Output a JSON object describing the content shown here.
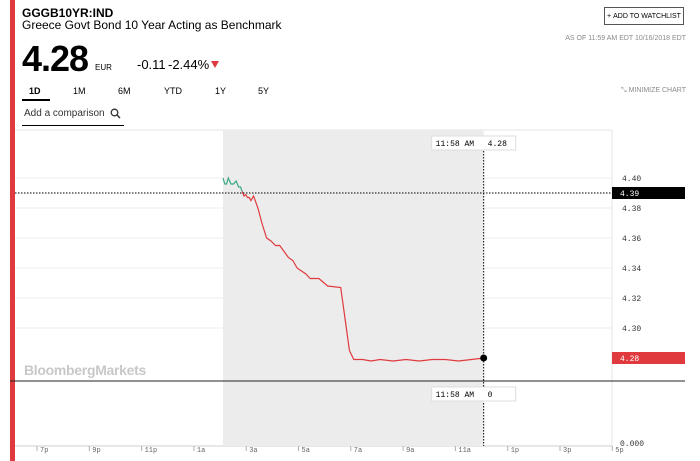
{
  "header": {
    "ticker": "GGGB10YR:IND",
    "name": "Greece Govt Bond 10 Year Acting as Benchmark",
    "watchlist_label": "ADD TO WATCHLIST",
    "as_of": "AS OF 11:59 AM EDT 10/16/2018 EDT"
  },
  "quote": {
    "price": "4.28",
    "currency": "EUR",
    "change": "-0.11",
    "percent_change": "-2.44%",
    "direction_icon": "down-triangle-icon"
  },
  "tabs": [
    {
      "label": "1D",
      "active": true
    },
    {
      "label": "1M",
      "active": false
    },
    {
      "label": "6M",
      "active": false
    },
    {
      "label": "YTD",
      "active": false
    },
    {
      "label": "1Y",
      "active": false
    },
    {
      "label": "5Y",
      "active": false
    }
  ],
  "minimize_label": "MINIMIZE CHART",
  "compare": {
    "placeholder": "Add a comparison",
    "icon": "search-icon"
  },
  "logo_text": "BloombergMarkets",
  "colors": {
    "accent": "#e03a3e",
    "up": "#3aa981",
    "down": "#e03a3e",
    "shade": "#ececec"
  },
  "chart_data": {
    "type": "line",
    "y_ticks": [
      "4.40",
      "4.38",
      "4.36",
      "4.34",
      "4.32",
      "4.30"
    ],
    "ylim": [
      4.269,
      4.408
    ],
    "x_ticks": [
      "7p",
      "9p",
      "11p",
      "1a",
      "3a",
      "5a",
      "7a",
      "9a",
      "11a",
      "1p",
      "3p",
      "5p"
    ],
    "crosshair_time": "11:58 AM",
    "crosshair_price": "4.28",
    "crosshair_volume": "0",
    "previous_close_label": "4.39",
    "previous_close": 4.39,
    "last_price_label": "4.28",
    "volume_axis_label": "0.000",
    "series": [
      {
        "color": "up",
        "points": [
          [
            "2:00",
            4.4
          ],
          [
            "2:04",
            4.396
          ],
          [
            "2:08",
            4.396
          ],
          [
            "2:12",
            4.4
          ],
          [
            "2:18",
            4.396
          ],
          [
            "2:24",
            4.396
          ],
          [
            "2:30",
            4.398
          ],
          [
            "2:36",
            4.394
          ],
          [
            "2:40",
            4.394
          ],
          [
            "2:44",
            4.391
          ]
        ]
      },
      {
        "color": "down",
        "points": [
          [
            "2:44",
            4.391
          ],
          [
            "2:48",
            4.388
          ],
          [
            "2:52",
            4.389
          ],
          [
            "2:56",
            4.387
          ],
          [
            "3:00",
            4.387
          ],
          [
            "3:04",
            4.385
          ],
          [
            "3:10",
            4.388
          ],
          [
            "3:20",
            4.38
          ],
          [
            "3:30",
            4.369
          ],
          [
            "3:40",
            4.36
          ],
          [
            "3:50",
            4.358
          ],
          [
            "4:00",
            4.355
          ],
          [
            "4:10",
            4.355
          ],
          [
            "4:20",
            4.351
          ],
          [
            "4:30",
            4.347
          ],
          [
            "4:40",
            4.345
          ],
          [
            "4:50",
            4.34
          ],
          [
            "5:00",
            4.338
          ],
          [
            "5:10",
            4.336
          ],
          [
            "5:20",
            4.333
          ],
          [
            "5:40",
            4.333
          ],
          [
            "6:00",
            4.328
          ],
          [
            "6:30",
            4.327
          ],
          [
            "6:40",
            4.306
          ],
          [
            "6:50",
            4.285
          ],
          [
            "7:00",
            4.279
          ],
          [
            "7:20",
            4.279
          ],
          [
            "7:40",
            4.278
          ],
          [
            "8:00",
            4.279
          ],
          [
            "8:30",
            4.278
          ],
          [
            "9:00",
            4.279
          ],
          [
            "9:30",
            4.278
          ],
          [
            "10:00",
            4.279
          ],
          [
            "10:30",
            4.279
          ],
          [
            "11:00",
            4.278
          ],
          [
            "11:30",
            4.279
          ],
          [
            "11:58",
            4.28
          ]
        ]
      }
    ]
  }
}
